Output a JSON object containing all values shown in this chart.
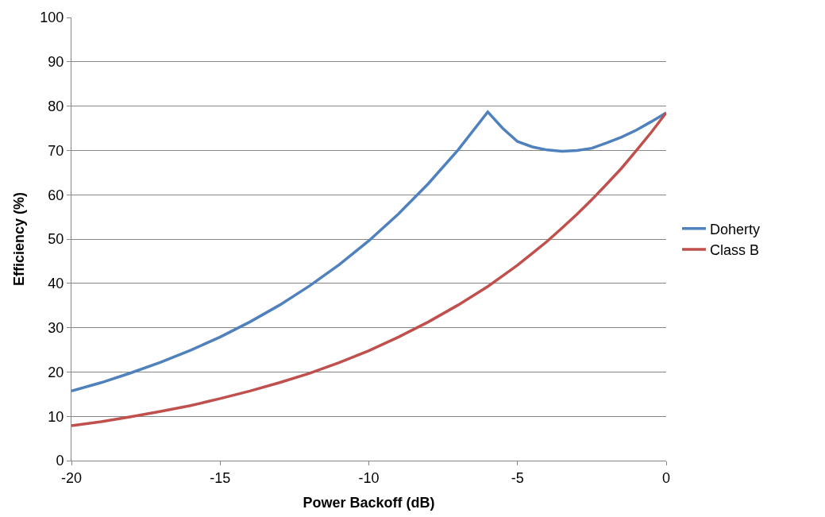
{
  "chart_data": {
    "type": "line",
    "xlabel": "Power Backoff (dB)",
    "ylabel": "Efficiency (%)",
    "x": [
      -20,
      -19,
      -18,
      -17,
      -16,
      -15,
      -14,
      -13,
      -12,
      -11,
      -10,
      -9,
      -8,
      -7,
      -6,
      -5.5,
      -5,
      -4.5,
      -4,
      -3.5,
      -3,
      -2.5,
      -2,
      -1.5,
      -1,
      -0.5,
      0
    ],
    "series": [
      {
        "name": "Doherty",
        "color": "#4f81bd",
        "values": [
          15.7,
          17.6,
          19.8,
          22.2,
          24.9,
          27.9,
          31.3,
          35.1,
          39.4,
          44.2,
          49.6,
          55.7,
          62.5,
          70.1,
          78.7,
          75,
          72,
          70.8,
          70.1,
          69.8,
          70,
          70.5,
          71.7,
          73,
          74.6,
          76.5,
          78.5
        ]
      },
      {
        "name": "Class B",
        "color": "#c0504d",
        "values": [
          7.9,
          8.8,
          9.9,
          11.1,
          12.4,
          14,
          15.7,
          17.6,
          19.7,
          22.1,
          24.8,
          27.9,
          31.3,
          35.1,
          39.3,
          41.7,
          44.1,
          46.8,
          49.5,
          52.5,
          55.6,
          58.9,
          62.4,
          66,
          70,
          74.1,
          78.5
        ]
      }
    ],
    "xlim": [
      -20,
      0
    ],
    "xticks": [
      -20,
      -15,
      -10,
      -5,
      0
    ],
    "ylim": [
      0,
      100
    ],
    "yticks": [
      0,
      10,
      20,
      30,
      40,
      50,
      60,
      70,
      80,
      90,
      100
    ],
    "grid": "y",
    "legend": "right",
    "marker": "none",
    "line_style": "solid"
  }
}
